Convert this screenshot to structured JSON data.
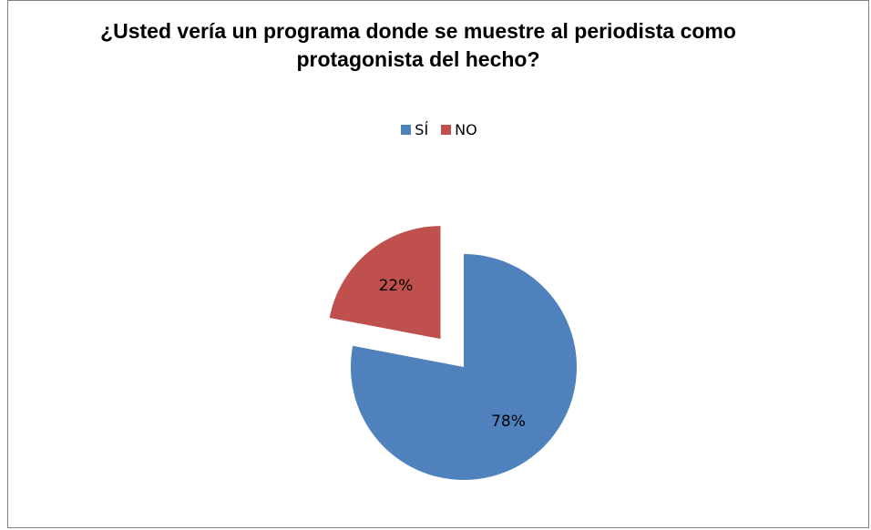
{
  "chart_data": {
    "type": "pie",
    "title": "¿Usted vería un programa donde se muestre al periodista como protagonista del hecho?",
    "categories": [
      "SÍ",
      "NO"
    ],
    "values": [
      78,
      22
    ],
    "labels": [
      "78%",
      "22%"
    ],
    "colors": [
      "#4F81BD",
      "#C0504D"
    ],
    "legend_position": "top",
    "exploded": "NO"
  },
  "legend": {
    "si_label": "SÍ",
    "no_label": "NO"
  }
}
